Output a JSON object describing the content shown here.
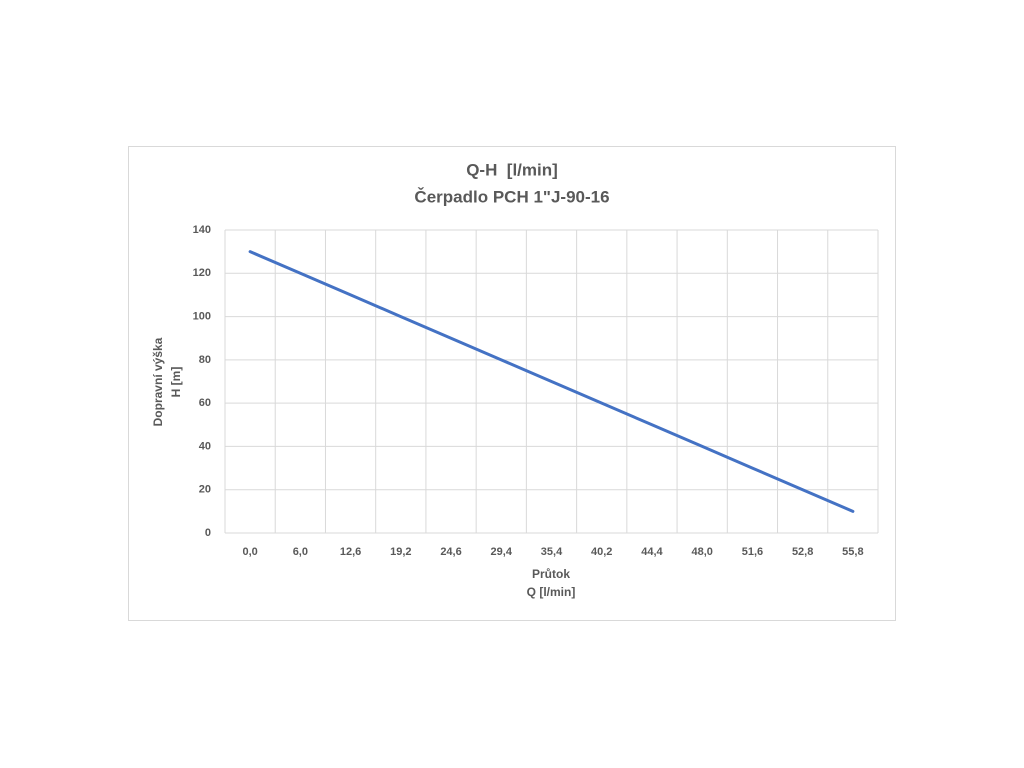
{
  "chart_data": {
    "type": "line",
    "title": [
      "Q-H  [l/min]",
      "Čerpadlo PCH 1\"J-90-16"
    ],
    "x_label": [
      "Průtok",
      "Q [l/min]"
    ],
    "y_label": [
      "Dopravní výška",
      "H [m]"
    ],
    "categories": [
      "0,0",
      "6,0",
      "12,6",
      "19,2",
      "24,6",
      "29,4",
      "35,4",
      "40,2",
      "44,4",
      "48,0",
      "51,6",
      "52,8",
      "55,8"
    ],
    "values": [
      130,
      120,
      110,
      100,
      90,
      80,
      70,
      60,
      50,
      40,
      30,
      20,
      10
    ],
    "color": "#4472c4",
    "ylim": [
      0,
      140
    ],
    "yticks": [
      0,
      20,
      40,
      60,
      80,
      100,
      120,
      140
    ],
    "grid": true
  }
}
